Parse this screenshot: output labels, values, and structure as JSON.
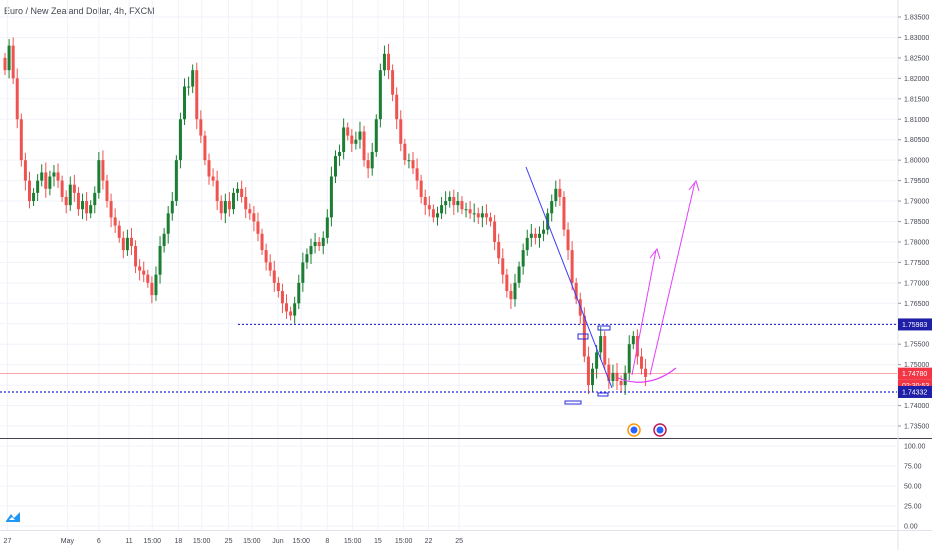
{
  "header": {
    "symbol_title": "Euro / New Zealand Dollar, 4h, FXCM"
  },
  "price_axis": {
    "labels": [
      "1.83500",
      "1.83000",
      "1.82500",
      "1.82000",
      "1.81500",
      "1.81000",
      "1.80500",
      "1.80000",
      "1.79500",
      "1.79000",
      "1.78500",
      "1.78000",
      "1.77500",
      "1.77000",
      "1.76500",
      "1.76000",
      "1.75500",
      "1.75000",
      "1.74500",
      "1.74000",
      "1.73500"
    ],
    "values": [
      1.835,
      1.83,
      1.825,
      1.82,
      1.815,
      1.81,
      1.805,
      1.8,
      1.795,
      1.79,
      1.785,
      1.78,
      1.775,
      1.77,
      1.765,
      1.76,
      1.755,
      1.75,
      1.745,
      1.74,
      1.735
    ]
  },
  "indicator_axis": {
    "labels": [
      "100.00",
      "75.00",
      "50.00",
      "25.00",
      "0.00"
    ],
    "values": [
      100,
      75,
      50,
      25,
      0
    ]
  },
  "time_axis": {
    "labels": [
      "27",
      "May",
      "6",
      "11",
      "15:00",
      "18",
      "15:00",
      "25",
      "15:00",
      "Jun",
      "15:00",
      "8",
      "15:00",
      "15",
      "15:00",
      "22",
      "25"
    ],
    "positions_index": [
      0.6,
      15.3,
      23.0,
      30.4,
      36.1,
      42.5,
      48.2,
      54.8,
      60.5,
      66.9,
      72.6,
      79.0,
      85.2,
      91.4,
      97.7,
      103.8,
      111.3
    ]
  },
  "badges": {
    "resistance_price": "1.75983",
    "current_price": "1.74780",
    "countdown": "02:30:53",
    "support_price": "1.74332"
  },
  "colors": {
    "up": "#26a69a",
    "up_dark": "#1b7e33",
    "down": "#ef5350",
    "level_line": "#2a2ad8",
    "trend_line": "#3a3aff",
    "projection": "#e040fb",
    "current_price": "#f23645"
  },
  "chart_data": {
    "type": "candlestick",
    "title": "Euro / New Zealand Dollar, 4h, FXCM",
    "ylim": [
      1.732,
      1.8375
    ],
    "levels": {
      "resistance": 1.75983,
      "support": 1.74332,
      "current": 1.7478
    },
    "close": [
      1.822,
      1.828,
      1.82,
      1.81,
      1.8,
      1.795,
      1.79,
      1.792,
      1.795,
      1.797,
      1.793,
      1.796,
      1.797,
      1.795,
      1.791,
      1.789,
      1.794,
      1.792,
      1.788,
      1.79,
      1.787,
      1.789,
      1.792,
      1.8,
      1.795,
      1.79,
      1.786,
      1.784,
      1.781,
      1.778,
      1.781,
      1.779,
      1.774,
      1.773,
      1.772,
      1.77,
      1.767,
      1.772,
      1.779,
      1.782,
      1.787,
      1.79,
      1.8,
      1.81,
      1.818,
      1.818,
      1.822,
      1.81,
      1.806,
      1.8,
      1.796,
      1.795,
      1.79,
      1.787,
      1.79,
      1.788,
      1.792,
      1.793,
      1.791,
      1.788,
      1.787,
      1.785,
      1.782,
      1.778,
      1.775,
      1.773,
      1.77,
      1.768,
      1.765,
      1.763,
      1.762,
      1.765,
      1.77,
      1.775,
      1.777,
      1.779,
      1.78,
      1.779,
      1.781,
      1.786,
      1.796,
      1.801,
      1.802,
      1.808,
      1.806,
      1.804,
      1.805,
      1.807,
      1.8,
      1.798,
      1.802,
      1.81,
      1.822,
      1.826,
      1.822,
      1.816,
      1.81,
      1.804,
      1.8,
      1.8,
      1.798,
      1.795,
      1.791,
      1.789,
      1.788,
      1.786,
      1.787,
      1.789,
      1.79,
      1.791,
      1.789,
      1.79,
      1.788,
      1.788,
      1.787,
      1.787,
      1.786,
      1.787,
      1.786,
      1.785,
      1.78,
      1.776,
      1.772,
      1.768,
      1.766,
      1.77,
      1.774,
      1.778,
      1.781,
      1.782,
      1.781,
      1.782,
      1.783,
      1.787,
      1.79,
      1.793,
      1.791,
      1.783,
      1.778,
      1.77,
      1.766,
      1.762,
      1.752,
      1.745,
      1.749,
      1.753,
      1.757,
      1.75,
      1.746,
      1.748,
      1.746,
      1.745,
      1.748,
      1.755,
      1.757,
      1.752,
      1.749,
      1.747
    ],
    "ohlc_note": "4h candles, approx. 152 bars, values read from price axis"
  }
}
